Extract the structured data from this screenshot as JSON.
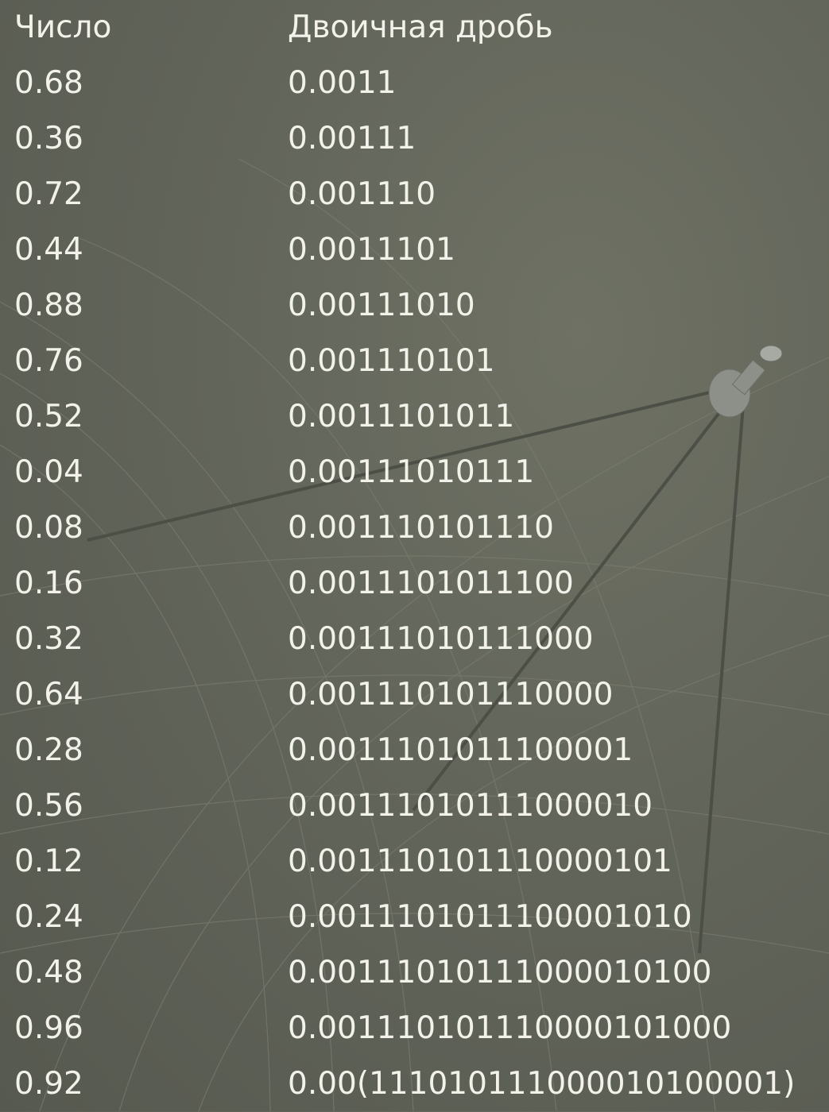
{
  "table": {
    "header": [
      "Число",
      "Двоичная дробь"
    ],
    "rows": [
      [
        "0.68",
        "0.0011"
      ],
      [
        "0.36",
        "0.00111"
      ],
      [
        "0.72",
        "0.001110"
      ],
      [
        "0.44",
        "0.0011101"
      ],
      [
        "0.88",
        "0.00111010"
      ],
      [
        "0.76",
        "0.001110101"
      ],
      [
        "0.52",
        "0.0011101011"
      ],
      [
        "0.04",
        "0.00111010111"
      ],
      [
        "0.08",
        "0.001110101110"
      ],
      [
        "0.16",
        "0.0011101011100"
      ],
      [
        "0.32",
        "0.00111010111000"
      ],
      [
        "0.64",
        "0.001110101110000"
      ],
      [
        "0.28",
        "0.0011101011100001"
      ],
      [
        "0.56",
        "0.00111010111000010"
      ],
      [
        "0.12",
        "0.001110101110000101"
      ],
      [
        "0.24",
        "0.0011101011100001010"
      ],
      [
        "0.48",
        "0.00111010111000010100"
      ],
      [
        "0.96",
        "0.001110101110000101000"
      ],
      [
        "0.92",
        "0.00(111010111000010100001)"
      ]
    ]
  }
}
